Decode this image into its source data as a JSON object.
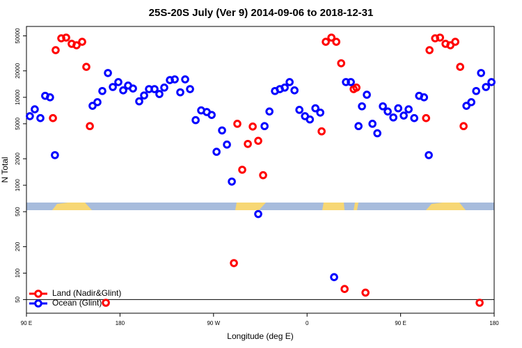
{
  "chart_data": {
    "type": "scatter",
    "title": "25S-20S July (Ver 9)   2014-09-06 to 2018-12-31",
    "xlabel": "Longitude (deg E)",
    "ylabel": "N Total",
    "xlim": [
      90,
      540
    ],
    "xticks": [
      {
        "value": 90,
        "label": "90 E"
      },
      {
        "value": 180,
        "label": "180"
      },
      {
        "value": 270,
        "label": "90 W"
      },
      {
        "value": 360,
        "label": "0"
      },
      {
        "value": 450,
        "label": "90 E"
      },
      {
        "value": 540,
        "label": "180"
      }
    ],
    "ylim": [
      35,
      64000
    ],
    "yticks": [
      50,
      100,
      200,
      500,
      1000,
      2000,
      5000,
      10000,
      20000,
      50000
    ],
    "log_y": true,
    "hline": 50,
    "legend": "bottomleft",
    "series": [
      {
        "name": "Land (Nadir&Glint)",
        "color": "#ff0000",
        "x": [
          115.5,
          118.1,
          123.5,
          128.2,
          133.5,
          138.2,
          143.6,
          147.6,
          151.0,
          166.4,
          289.6,
          292.9,
          297.6,
          303.0,
          307.7,
          313.0,
          317.7,
          374.0,
          378.0,
          383.4,
          388.1,
          392.8,
          396.1,
          404.8,
          407.5,
          416.2,
          474.5,
          477.8,
          483.2,
          487.9,
          493.2,
          497.9,
          502.6,
          507.3,
          510.6,
          526.0
        ],
        "values": [
          5800,
          34400,
          46900,
          47800,
          40600,
          39100,
          42800,
          22200,
          4700,
          46,
          130,
          5000,
          1500,
          2950,
          4650,
          3200,
          1300,
          4100,
          42800,
          47800,
          42800,
          24400,
          66,
          12400,
          12900,
          60,
          5800,
          34400,
          46900,
          47800,
          40600,
          39100,
          42800,
          22200,
          4700,
          46
        ]
      },
      {
        "name": "Ocean (Glint)",
        "color": "#0000ff",
        "x": [
          93.3,
          98.0,
          103.4,
          108.0,
          112.7,
          117.4,
          153.6,
          158.3,
          163.0,
          168.4,
          173.1,
          178.4,
          183.1,
          187.8,
          192.5,
          198.5,
          203.2,
          207.9,
          213.2,
          217.9,
          222.6,
          228.0,
          232.7,
          238.0,
          242.7,
          247.4,
          252.8,
          258.1,
          263.5,
          268.2,
          272.9,
          278.2,
          282.9,
          287.6,
          313.0,
          319.1,
          323.8,
          329.1,
          333.8,
          338.5,
          343.2,
          347.9,
          352.6,
          358.0,
          362.7,
          368.0,
          372.7,
          386.0,
          397.4,
          402.1,
          409.5,
          412.8,
          417.5,
          422.9,
          427.6,
          432.9,
          437.6,
          443.0,
          447.7,
          453.0,
          457.7,
          463.1,
          467.8,
          472.5,
          477.1,
          513.3,
          518.0,
          522.7,
          527.4,
          532.1,
          537.4
        ],
        "values": [
          6100,
          7300,
          5800,
          10400,
          10000,
          2200,
          8000,
          8800,
          11800,
          18900,
          13100,
          14900,
          12000,
          13600,
          12600,
          9000,
          10500,
          12400,
          12400,
          10900,
          12900,
          15700,
          16000,
          11400,
          16000,
          12400,
          5500,
          7100,
          6800,
          6300,
          2400,
          4200,
          2900,
          1100,
          470,
          4700,
          6900,
          11800,
          12400,
          12900,
          14900,
          12000,
          7200,
          6100,
          5600,
          7500,
          6700,
          90,
          14900,
          14900,
          4700,
          7900,
          10700,
          5000,
          3900,
          7900,
          6900,
          5900,
          7500,
          6200,
          7300,
          5800,
          10400,
          10000,
          2200,
          8000,
          8800,
          11800,
          18900,
          13100,
          14900
        ]
      }
    ]
  }
}
